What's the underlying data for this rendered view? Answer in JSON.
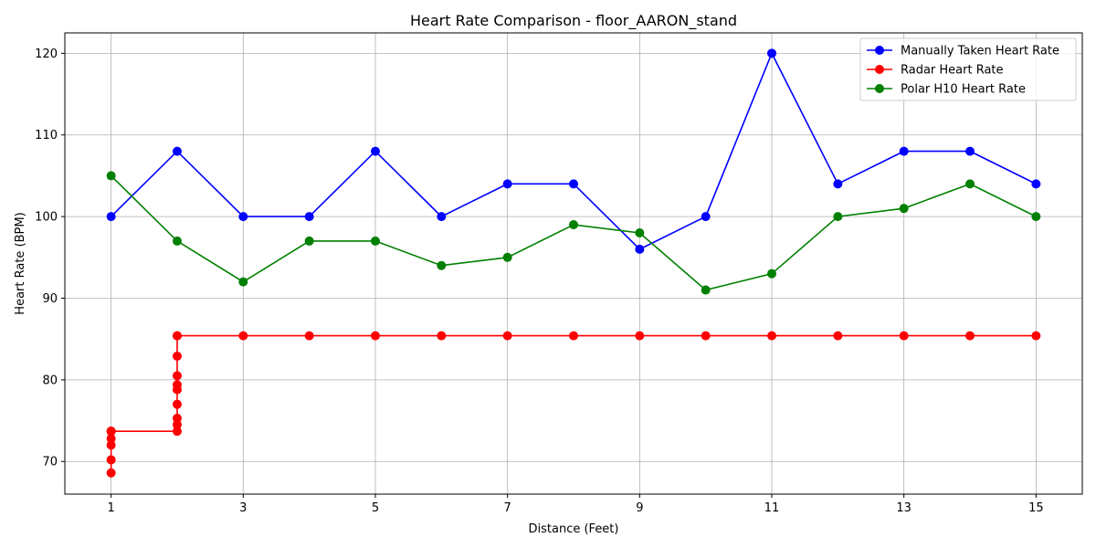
{
  "chart_data": {
    "type": "line",
    "title": "Heart Rate Comparison - floor_AARON_stand",
    "xlabel": "Distance (Feet)",
    "ylabel": "Heart Rate (BPM)",
    "xlim": [
      0.3,
      15.7
    ],
    "ylim": [
      66,
      122.5
    ],
    "xticks": [
      1,
      3,
      5,
      7,
      9,
      11,
      13,
      15
    ],
    "yticks": [
      70,
      80,
      90,
      100,
      110,
      120
    ],
    "grid": true,
    "legend_position": "top-right",
    "series": [
      {
        "name": "Manually Taken Heart Rate",
        "color": "#0000ff",
        "x": [
          1,
          2,
          3,
          4,
          5,
          6,
          7,
          8,
          9,
          10,
          11,
          12,
          13,
          14,
          15
        ],
        "y": [
          100,
          108,
          100,
          100,
          108,
          100,
          104,
          104,
          96,
          100,
          120,
          104,
          108,
          108,
          104
        ]
      },
      {
        "name": "Radar Heart Rate",
        "color": "#ff0000",
        "x": [
          1,
          1,
          1,
          1,
          1,
          1,
          1,
          2,
          2,
          2,
          2,
          2,
          2,
          2,
          2,
          2,
          2,
          3,
          4,
          5,
          6,
          7,
          8,
          9,
          10,
          11,
          12,
          13,
          14,
          15
        ],
        "y": [
          68.6,
          70.2,
          72.0,
          72.8,
          73.7,
          73.7,
          73.7,
          73.7,
          74.5,
          75.3,
          77.0,
          78.8,
          79.4,
          80.5,
          82.9,
          85.4,
          85.4,
          85.4,
          85.4,
          85.4,
          85.4,
          85.4,
          85.4,
          85.4,
          85.4,
          85.4,
          85.4,
          85.4,
          85.4,
          85.4
        ]
      },
      {
        "name": "Polar H10 Heart Rate",
        "color": "#008000",
        "x": [
          1,
          2,
          3,
          4,
          5,
          6,
          7,
          8,
          9,
          10,
          11,
          12,
          13,
          14,
          15
        ],
        "y": [
          105,
          97,
          92,
          97,
          97,
          94,
          95,
          99,
          98,
          91,
          93,
          100,
          101,
          104,
          100
        ]
      }
    ]
  }
}
